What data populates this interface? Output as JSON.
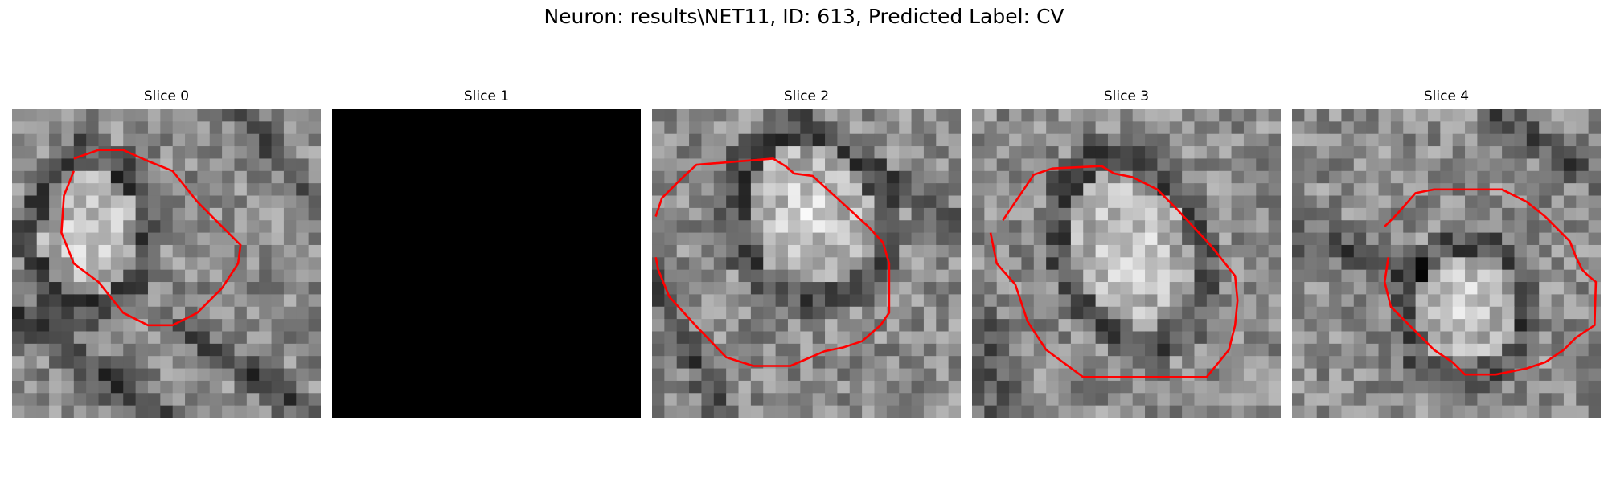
{
  "figure": {
    "title": "Neuron: results\\NET11, ID: 613, Predicted Label: CV"
  },
  "panels": [
    {
      "title": "Slice 0",
      "blank": false,
      "seed": 11
    },
    {
      "title": "Slice 1",
      "blank": true,
      "seed": 0
    },
    {
      "title": "Slice 2",
      "blank": false,
      "seed": 23
    },
    {
      "title": "Slice 3",
      "blank": false,
      "seed": 37
    },
    {
      "title": "Slice 4",
      "blank": false,
      "seed": 53
    }
  ],
  "colors": {
    "contour": "#ff0000",
    "blank_panel": "#000000"
  }
}
